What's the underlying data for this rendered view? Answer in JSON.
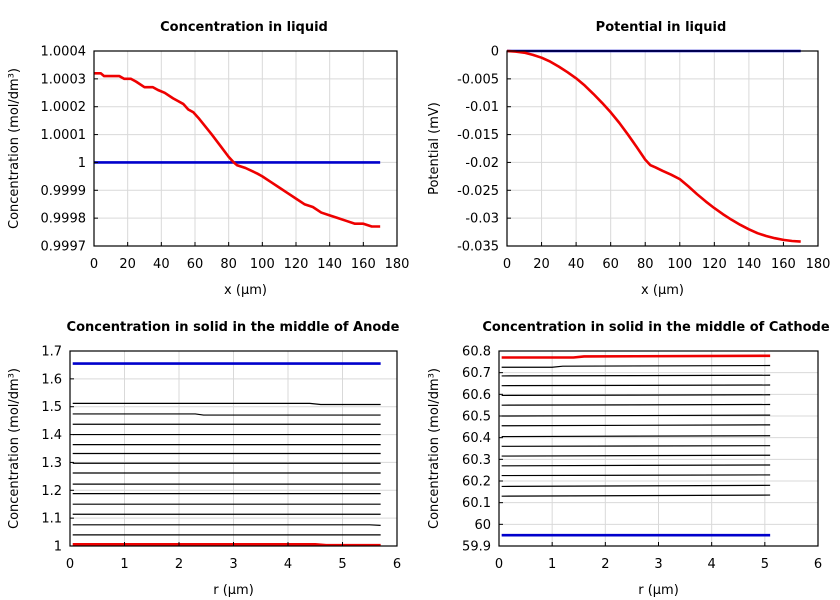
{
  "chart_data": [
    {
      "type": "line",
      "title": "Concentration in liquid",
      "xlabel": "x (µm)",
      "ylabel": "Concentration (mol/dm³)",
      "xlim": [
        0,
        180
      ],
      "ylim": [
        0.9997,
        1.0004
      ],
      "xticks": [
        0,
        20,
        40,
        60,
        80,
        100,
        120,
        140,
        160,
        180
      ],
      "xtick_labels": [
        "0",
        "20",
        "40",
        "60",
        "80",
        "100",
        "120",
        "140",
        "160",
        "180"
      ],
      "yticks": [
        0.9997,
        0.9998,
        0.9999,
        1,
        1.0001,
        1.0002,
        1.0003,
        1.0004
      ],
      "ytick_labels": [
        "0.9997",
        "0.9998",
        "0.9999",
        "1",
        "1.0001",
        "1.0002",
        "1.0003",
        "1.0004"
      ],
      "grid": true,
      "series": [
        {
          "color": "#0000cc",
          "x": [
            0,
            170
          ],
          "y": [
            1.0,
            1.0
          ]
        },
        {
          "color": "#ee0000",
          "x": [
            0,
            4,
            6,
            10,
            15,
            18,
            22,
            25,
            30,
            35,
            38,
            42,
            47,
            50,
            53,
            56,
            59,
            62,
            66,
            70,
            75,
            80,
            83,
            85,
            90,
            97,
            100,
            105,
            110,
            115,
            120,
            125,
            130,
            135,
            140,
            145,
            150,
            155,
            160,
            165,
            170
          ],
          "y": [
            1.00032,
            1.00032,
            1.00031,
            1.00031,
            1.00031,
            1.0003,
            1.0003,
            1.00029,
            1.00027,
            1.00027,
            1.00026,
            1.00025,
            1.00023,
            1.00022,
            1.00021,
            1.00019,
            1.00018,
            1.00016,
            1.00013,
            1.0001,
            1.00006,
            1.00002,
            1.0,
            0.99999,
            0.99998,
            0.99996,
            0.99995,
            0.99993,
            0.99991,
            0.99989,
            0.99987,
            0.99985,
            0.99984,
            0.99982,
            0.99981,
            0.9998,
            0.99979,
            0.99978,
            0.99978,
            0.99977,
            0.99977
          ]
        }
      ]
    },
    {
      "type": "line",
      "title": "Potential in liquid",
      "xlabel": "x (µm)",
      "ylabel": "Potential (mV)",
      "xlim": [
        0,
        180
      ],
      "ylim": [
        -0.035,
        0
      ],
      "xticks": [
        0,
        20,
        40,
        60,
        80,
        100,
        120,
        140,
        160,
        180
      ],
      "xtick_labels": [
        "0",
        "20",
        "40",
        "60",
        "80",
        "100",
        "120",
        "140",
        "160",
        "180"
      ],
      "yticks": [
        -0.035,
        -0.03,
        -0.025,
        -0.02,
        -0.015,
        -0.01,
        -0.005,
        0
      ],
      "ytick_labels": [
        "-0.035",
        "-0.03",
        "-0.025",
        "-0.02",
        "-0.015",
        "-0.01",
        "-0.005",
        "0"
      ],
      "grid": true,
      "series": [
        {
          "color": "#0000cc",
          "x": [
            0,
            170
          ],
          "y": [
            0,
            0
          ]
        },
        {
          "color": "#ee0000",
          "x": [
            0,
            5,
            10,
            15,
            20,
            25,
            30,
            35,
            40,
            45,
            50,
            55,
            60,
            65,
            70,
            75,
            80,
            83,
            86,
            90,
            95,
            100,
            105,
            110,
            115,
            120,
            125,
            130,
            135,
            140,
            145,
            150,
            155,
            160,
            165,
            170
          ],
          "y": [
            0,
            -0.0001,
            -0.0003,
            -0.0007,
            -0.0012,
            -0.0019,
            -0.0028,
            -0.0038,
            -0.0049,
            -0.0062,
            -0.0077,
            -0.0093,
            -0.011,
            -0.0129,
            -0.015,
            -0.0172,
            -0.0195,
            -0.0205,
            -0.0209,
            -0.0215,
            -0.0222,
            -0.023,
            -0.0243,
            -0.0257,
            -0.027,
            -0.0282,
            -0.0293,
            -0.0303,
            -0.0312,
            -0.032,
            -0.0327,
            -0.0332,
            -0.0336,
            -0.0339,
            -0.0341,
            -0.0342
          ]
        }
      ]
    },
    {
      "type": "line",
      "title": "Concentration in solid in the middle of Anode",
      "xlabel": "r (µm)",
      "ylabel": "Concentration (mol/dm³)",
      "xlim": [
        0,
        6
      ],
      "ylim": [
        1,
        1.7
      ],
      "xticks": [
        0,
        1,
        2,
        3,
        4,
        5,
        6
      ],
      "xtick_labels": [
        "0",
        "1",
        "2",
        "3",
        "4",
        "5",
        "6"
      ],
      "yticks": [
        1,
        1.1,
        1.2,
        1.3,
        1.4,
        1.5,
        1.6,
        1.7
      ],
      "ytick_labels": [
        "1",
        "1.1",
        "1.2",
        "1.3",
        "1.4",
        "1.5",
        "1.6",
        "1.7"
      ],
      "grid": true,
      "series": [
        {
          "color": "#0000cc",
          "x": [
            0.05,
            5.7
          ],
          "y": [
            1.655,
            1.655
          ]
        },
        {
          "color": "#000000",
          "x": [
            0.05,
            4.4,
            4.6,
            5.7
          ],
          "y": [
            1.512,
            1.512,
            1.508,
            1.508
          ]
        },
        {
          "color": "#000000",
          "x": [
            0.05,
            2.3,
            2.45,
            5.7
          ],
          "y": [
            1.474,
            1.474,
            1.47,
            1.47
          ]
        },
        {
          "color": "#000000",
          "x": [
            0.05,
            5.7
          ],
          "y": [
            1.437,
            1.437
          ]
        },
        {
          "color": "#000000",
          "x": [
            0.05,
            5.7
          ],
          "y": [
            1.4,
            1.4
          ]
        },
        {
          "color": "#000000",
          "x": [
            0.05,
            5.7
          ],
          "y": [
            1.364,
            1.364
          ]
        },
        {
          "color": "#000000",
          "x": [
            0.05,
            5.7
          ],
          "y": [
            1.332,
            1.332
          ]
        },
        {
          "color": "#000000",
          "x": [
            0.05,
            5.7
          ],
          "y": [
            1.297,
            1.297
          ]
        },
        {
          "color": "#000000",
          "x": [
            0.05,
            5.7
          ],
          "y": [
            1.262,
            1.262
          ]
        },
        {
          "color": "#000000",
          "x": [
            0.05,
            5.7
          ],
          "y": [
            1.222,
            1.222
          ]
        },
        {
          "color": "#000000",
          "x": [
            0.05,
            5.7
          ],
          "y": [
            1.188,
            1.188
          ]
        },
        {
          "color": "#000000",
          "x": [
            0.05,
            5.7
          ],
          "y": [
            1.15,
            1.15
          ]
        },
        {
          "color": "#000000",
          "x": [
            0.05,
            5.7
          ],
          "y": [
            1.114,
            1.114
          ]
        },
        {
          "color": "#000000",
          "x": [
            0.05,
            5.5,
            5.7
          ],
          "y": [
            1.076,
            1.076,
            1.074
          ]
        },
        {
          "color": "#000000",
          "x": [
            0.05,
            5.7
          ],
          "y": [
            1.04,
            1.04
          ]
        },
        {
          "color": "#ee0000",
          "x": [
            0.05,
            4.5,
            4.7,
            5.7
          ],
          "y": [
            1.006,
            1.006,
            1.003,
            1.003
          ]
        }
      ]
    },
    {
      "type": "line",
      "title": "Concentration in solid in the middle of Cathode",
      "xlabel": "r (µm)",
      "ylabel": "Concentration (mol/dm³)",
      "xlim": [
        0,
        6
      ],
      "ylim": [
        59.9,
        60.8
      ],
      "xticks": [
        0,
        1,
        2,
        3,
        4,
        5,
        6
      ],
      "xtick_labels": [
        "0",
        "1",
        "2",
        "3",
        "4",
        "5",
        "6"
      ],
      "yticks": [
        59.9,
        60,
        60.1,
        60.2,
        60.3,
        60.4,
        60.5,
        60.6,
        60.7,
        60.8
      ],
      "ytick_labels": [
        "59.9",
        "60",
        "60.1",
        "60.2",
        "60.3",
        "60.4",
        "60.5",
        "60.6",
        "60.7",
        "60.8"
      ],
      "grid": true,
      "series": [
        {
          "color": "#0000cc",
          "x": [
            0.05,
            5.1
          ],
          "y": [
            59.95,
            59.95
          ]
        },
        {
          "color": "#000000",
          "x": [
            0.05,
            5.1
          ],
          "y": [
            60.13,
            60.135
          ]
        },
        {
          "color": "#000000",
          "x": [
            0.05,
            5.1
          ],
          "y": [
            60.175,
            60.18
          ]
        },
        {
          "color": "#000000",
          "x": [
            0.05,
            5.1
          ],
          "y": [
            60.225,
            60.228
          ]
        },
        {
          "color": "#000000",
          "x": [
            0.05,
            5.1
          ],
          "y": [
            60.27,
            60.274
          ]
        },
        {
          "color": "#000000",
          "x": [
            0.05,
            5.1
          ],
          "y": [
            60.315,
            60.319
          ]
        },
        {
          "color": "#000000",
          "x": [
            0.05,
            5.1
          ],
          "y": [
            60.36,
            60.363
          ]
        },
        {
          "color": "#000000",
          "x": [
            0.05,
            5.1
          ],
          "y": [
            60.405,
            60.409
          ]
        },
        {
          "color": "#000000",
          "x": [
            0.05,
            5.1
          ],
          "y": [
            60.455,
            60.459
          ]
        },
        {
          "color": "#000000",
          "x": [
            0.05,
            5.1
          ],
          "y": [
            60.5,
            60.504
          ]
        },
        {
          "color": "#000000",
          "x": [
            0.05,
            5.1
          ],
          "y": [
            60.55,
            60.553
          ]
        },
        {
          "color": "#000000",
          "x": [
            0.05,
            5.1
          ],
          "y": [
            60.595,
            60.598
          ]
        },
        {
          "color": "#000000",
          "x": [
            0.05,
            5.1
          ],
          "y": [
            60.64,
            60.643
          ]
        },
        {
          "color": "#000000",
          "x": [
            0.05,
            5.1
          ],
          "y": [
            60.685,
            60.688
          ]
        },
        {
          "color": "#000000",
          "x": [
            0.05,
            1.0,
            1.2,
            5.1
          ],
          "y": [
            60.725,
            60.725,
            60.73,
            60.733
          ]
        },
        {
          "color": "#ee0000",
          "x": [
            0.05,
            1.4,
            1.6,
            5.1
          ],
          "y": [
            60.77,
            60.77,
            60.775,
            60.778
          ]
        }
      ]
    }
  ]
}
